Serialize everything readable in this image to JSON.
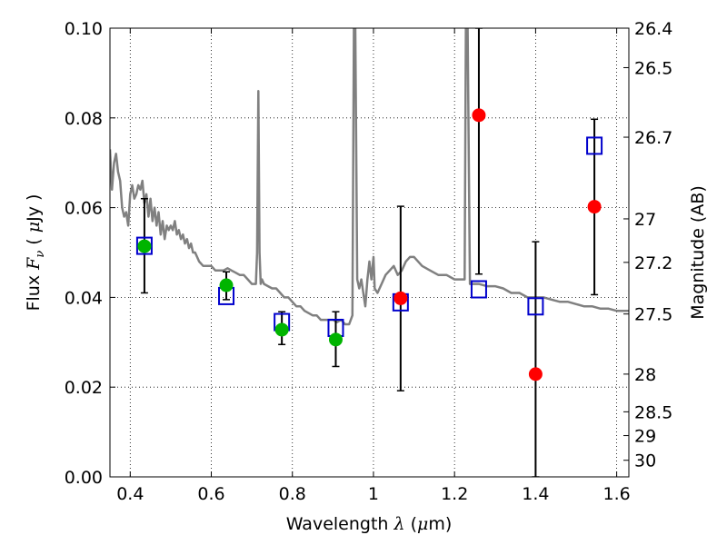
{
  "chart_data": {
    "type": "scatter",
    "title": "",
    "xlabel": "Wavelength  λ (μm)",
    "ylabel": "Flux  Fν  ( μJy )",
    "ylabel_right": "Magnitude (AB)",
    "xlim": [
      0.35,
      1.63
    ],
    "ylim": [
      0.0,
      0.1
    ],
    "grid": true,
    "x_ticks": [
      0.4,
      0.6,
      0.8,
      1.0,
      1.2,
      1.4,
      1.6
    ],
    "x_tick_labels": [
      "0.4",
      "0.6",
      "0.8",
      "1",
      "1.2",
      "1.4",
      "1.6"
    ],
    "y_ticks": [
      0.0,
      0.02,
      0.04,
      0.06,
      0.08,
      0.1
    ],
    "y_tick_labels": [
      "0.00",
      "0.02",
      "0.04",
      "0.06",
      "0.08",
      "0.10"
    ],
    "right_ticks": [
      {
        "flux": 0.1,
        "label": "26.4"
      },
      {
        "flux": 0.0912,
        "label": "26.5"
      },
      {
        "flux": 0.0757,
        "label": "26.7"
      },
      {
        "flux": 0.0575,
        "label": "27"
      },
      {
        "flux": 0.0478,
        "label": "27.2"
      },
      {
        "flux": 0.0363,
        "label": "27.5"
      },
      {
        "flux": 0.0229,
        "label": "28"
      },
      {
        "flux": 0.0145,
        "label": "28.5"
      },
      {
        "flux": 0.0092,
        "label": "29"
      },
      {
        "flux": 0.0037,
        "label": "30"
      }
    ],
    "colors": {
      "spectrum": "#808080",
      "model": "#0000cc",
      "detection": "#00b400",
      "upper": "#ff0000",
      "errorbar": "#000000"
    },
    "series": [
      {
        "kind": "spectrum",
        "x": [
          0.35,
          0.355,
          0.36,
          0.365,
          0.37,
          0.375,
          0.38,
          0.385,
          0.39,
          0.395,
          0.4,
          0.405,
          0.41,
          0.415,
          0.42,
          0.425,
          0.43,
          0.435,
          0.44,
          0.445,
          0.45,
          0.455,
          0.46,
          0.465,
          0.47,
          0.475,
          0.48,
          0.485,
          0.49,
          0.495,
          0.5,
          0.505,
          0.51,
          0.515,
          0.52,
          0.525,
          0.53,
          0.535,
          0.54,
          0.545,
          0.55,
          0.555,
          0.56,
          0.565,
          0.57,
          0.58,
          0.59,
          0.6,
          0.61,
          0.62,
          0.63,
          0.64,
          0.65,
          0.66,
          0.67,
          0.68,
          0.69,
          0.7,
          0.71,
          0.713,
          0.716,
          0.719,
          0.722,
          0.725,
          0.73,
          0.74,
          0.75,
          0.76,
          0.77,
          0.78,
          0.79,
          0.8,
          0.81,
          0.82,
          0.83,
          0.84,
          0.85,
          0.86,
          0.87,
          0.88,
          0.89,
          0.9,
          0.91,
          0.92,
          0.93,
          0.94,
          0.948,
          0.952,
          0.955,
          0.96,
          0.965,
          0.97,
          0.975,
          0.98,
          0.985,
          0.99,
          0.995,
          1.0,
          1.003,
          1.01,
          1.02,
          1.03,
          1.04,
          1.05,
          1.06,
          1.07,
          1.08,
          1.09,
          1.1,
          1.12,
          1.14,
          1.16,
          1.18,
          1.2,
          1.22,
          1.225,
          1.228,
          1.232,
          1.238,
          1.25,
          1.26,
          1.28,
          1.3,
          1.32,
          1.34,
          1.36,
          1.38,
          1.4,
          1.42,
          1.44,
          1.46,
          1.48,
          1.5,
          1.52,
          1.54,
          1.56,
          1.58,
          1.6,
          1.63
        ],
        "y": [
          0.073,
          0.064,
          0.07,
          0.072,
          0.068,
          0.066,
          0.06,
          0.058,
          0.059,
          0.056,
          0.063,
          0.065,
          0.062,
          0.063,
          0.065,
          0.064,
          0.066,
          0.061,
          0.063,
          0.058,
          0.062,
          0.057,
          0.06,
          0.056,
          0.059,
          0.054,
          0.057,
          0.053,
          0.056,
          0.055,
          0.056,
          0.055,
          0.057,
          0.054,
          0.055,
          0.053,
          0.054,
          0.052,
          0.053,
          0.051,
          0.052,
          0.05,
          0.05,
          0.049,
          0.048,
          0.047,
          0.047,
          0.047,
          0.046,
          0.046,
          0.046,
          0.0465,
          0.046,
          0.0455,
          0.045,
          0.045,
          0.044,
          0.043,
          0.043,
          0.05,
          0.086,
          0.05,
          0.043,
          0.044,
          0.043,
          0.0425,
          0.042,
          0.042,
          0.041,
          0.04,
          0.04,
          0.039,
          0.038,
          0.038,
          0.037,
          0.0365,
          0.036,
          0.036,
          0.035,
          0.035,
          0.035,
          0.035,
          0.0345,
          0.035,
          0.034,
          0.034,
          0.036,
          0.102,
          0.102,
          0.044,
          0.042,
          0.044,
          0.041,
          0.038,
          0.044,
          0.048,
          0.044,
          0.049,
          0.042,
          0.041,
          0.043,
          0.045,
          0.046,
          0.047,
          0.045,
          0.046,
          0.048,
          0.049,
          0.049,
          0.047,
          0.046,
          0.045,
          0.045,
          0.044,
          0.044,
          0.044,
          0.102,
          0.102,
          0.043,
          0.043,
          0.043,
          0.0425,
          0.0425,
          0.042,
          0.041,
          0.041,
          0.04,
          0.04,
          0.04,
          0.0395,
          0.039,
          0.039,
          0.0385,
          0.038,
          0.038,
          0.0375,
          0.0375,
          0.037,
          0.037
        ]
      },
      {
        "kind": "model",
        "marker": "open-square",
        "x": [
          0.435,
          0.637,
          0.774,
          0.907,
          1.067,
          1.26,
          1.4,
          1.545
        ],
        "y": [
          0.0515,
          0.0403,
          0.0345,
          0.0332,
          0.0389,
          0.0418,
          0.038,
          0.0738
        ]
      },
      {
        "kind": "detection",
        "marker": "filled-circle",
        "x": [
          0.435,
          0.637,
          0.774,
          0.907
        ],
        "y": [
          0.0514,
          0.0427,
          0.0328,
          0.0306
        ],
        "err_low": [
          0.041,
          0.0395,
          0.0295,
          0.0246
        ],
        "err_high": [
          0.062,
          0.0457,
          0.0368,
          0.0368
        ]
      },
      {
        "kind": "upper",
        "marker": "filled-circle",
        "x": [
          1.067,
          1.26,
          1.4,
          1.545
        ],
        "y": [
          0.0398,
          0.0806,
          0.0229,
          0.0602
        ],
        "err_low": [
          0.0192,
          0.0452,
          0.0,
          0.0406
        ],
        "err_high": [
          0.0603,
          0.1,
          0.0524,
          0.0797
        ]
      }
    ]
  }
}
